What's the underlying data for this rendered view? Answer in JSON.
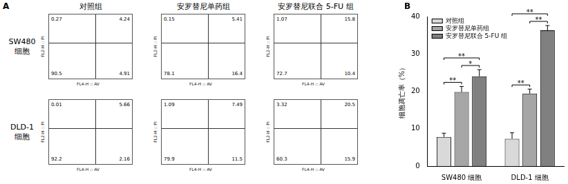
{
  "panel_a": {
    "label": "A",
    "columns": [
      "对照组",
      "安罗替尼单药组",
      "安罗替尼联合 5-FU 组"
    ],
    "x_label": "FL4-H :: AV",
    "y_label": "FL2-H :: PI",
    "rows": [
      {
        "label_lines": [
          "SW480",
          "细胞"
        ],
        "plots": [
          {
            "upper_left": 0.27,
            "upper_right": 4.24,
            "lower_left": 90.5,
            "lower_right": 4.91
          },
          {
            "upper_left": 0.15,
            "upper_right": 5.41,
            "lower_left": 78.1,
            "lower_right": 16.4
          },
          {
            "upper_left": 1.07,
            "upper_right": 15.8,
            "lower_left": 72.7,
            "lower_right": 10.4
          }
        ]
      },
      {
        "label_lines": [
          "DLD-1",
          "细胞"
        ],
        "plots": [
          {
            "upper_left": 0.01,
            "upper_right": 5.66,
            "lower_left": 92.2,
            "lower_right": 2.16
          },
          {
            "upper_left": 1.09,
            "upper_right": 7.49,
            "lower_left": 79.9,
            "lower_right": 11.5
          },
          {
            "upper_left": 3.32,
            "upper_right": 20.5,
            "lower_left": 60.3,
            "lower_right": 15.9
          }
        ]
      }
    ]
  },
  "panel_b_label": "B",
  "chart_data": {
    "type": "bar",
    "categories": [
      "SW480 细胞",
      "DLD-1 细胞"
    ],
    "y_label": "细胞凋亡率（%）",
    "ylim": [
      0,
      40
    ],
    "yticks": [
      0,
      10,
      20,
      30,
      40
    ],
    "grid": false,
    "legend": "top-left",
    "series": [
      {
        "name": "对照组",
        "color": "#d9d9d9",
        "values": [
          7.8,
          7.3
        ],
        "errors": [
          1.0,
          1.6
        ]
      },
      {
        "name": "安罗替尼单药组",
        "color": "#a6a6a6",
        "values": [
          19.8,
          19.4
        ],
        "errors": [
          1.5,
          1.2
        ]
      },
      {
        "name": "安罗替尼联合 5-FU 组",
        "color": "#808080",
        "values": [
          24.0,
          36.3
        ],
        "errors": [
          1.8,
          1.3
        ]
      }
    ],
    "annotations": [
      {
        "category": "SW480 细胞",
        "from": "对照组",
        "to": "安罗替尼单药组",
        "text": "**"
      },
      {
        "category": "SW480 细胞",
        "from": "安罗替尼单药组",
        "to": "安罗替尼联合 5-FU 组",
        "text": "*"
      },
      {
        "category": "SW480 细胞",
        "from": "对照组",
        "to": "安罗替尼联合 5-FU 组",
        "text": "**"
      },
      {
        "category": "DLD-1 细胞",
        "from": "对照组",
        "to": "安罗替尼单药组",
        "text": "**"
      },
      {
        "category": "DLD-1 细胞",
        "from": "安罗替尼单药组",
        "to": "安罗替尼联合 5-FU 组",
        "text": "**"
      },
      {
        "category": "DLD-1 细胞",
        "from": "对照组",
        "to": "安罗替尼联合 5-FU 组",
        "text": "**"
      }
    ]
  }
}
